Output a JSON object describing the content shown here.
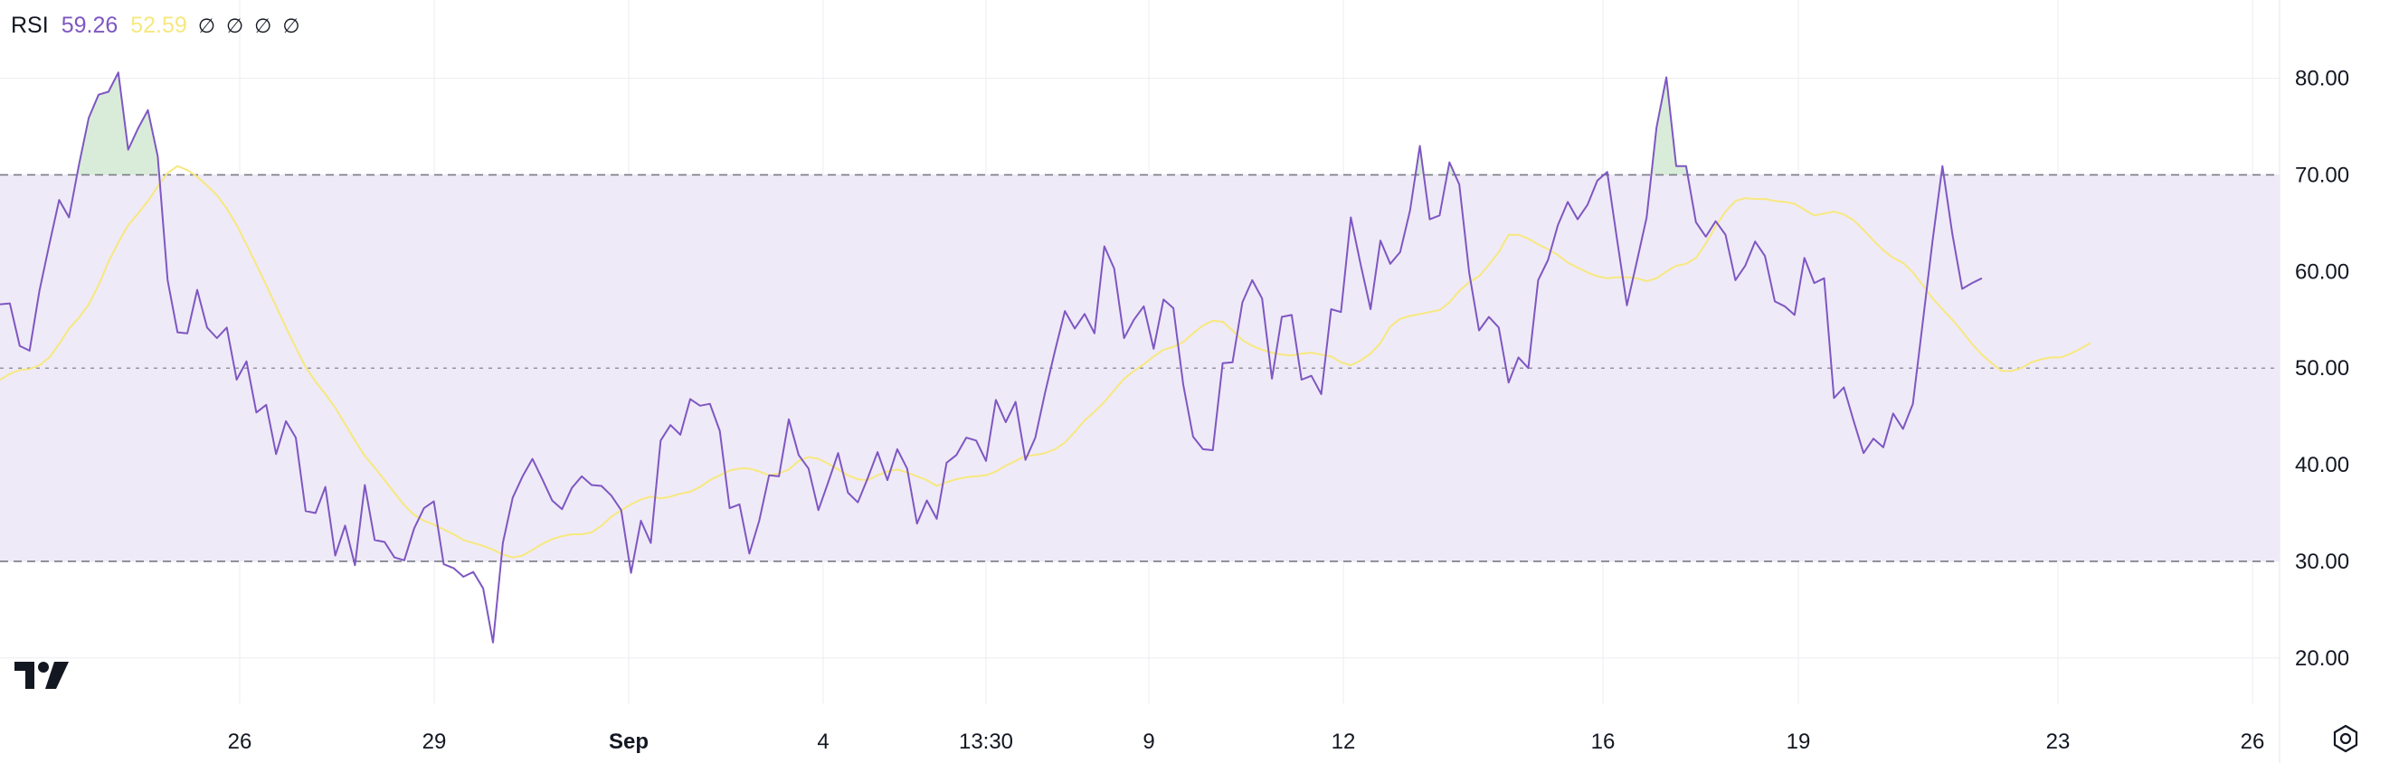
{
  "legend": {
    "indicator": "RSI",
    "value_rsi": "59.26",
    "value_ma": "52.59",
    "na_symbols": [
      "∅",
      "∅",
      "∅",
      "∅"
    ]
  },
  "colors": {
    "rsi": "#7e57c2",
    "ma": "#f7e87f",
    "band_fill": "#efeaf7",
    "overbought_fill": "#d9ecd9",
    "grid": "#eeeef2",
    "band_line": "#787b86"
  },
  "icons": {
    "logo": "tradingview-logo-icon",
    "settings": "settings-gear-icon"
  },
  "chart_data": {
    "type": "line",
    "title": "",
    "xlabel": "",
    "ylabel": "",
    "x_ticks": [
      {
        "label": "26",
        "bold": false
      },
      {
        "label": "29",
        "bold": false
      },
      {
        "label": "Sep",
        "bold": true
      },
      {
        "label": "4",
        "bold": false
      },
      {
        "label": "13:30",
        "bold": false
      },
      {
        "label": "9",
        "bold": false
      },
      {
        "label": "12",
        "bold": false
      },
      {
        "label": "16",
        "bold": false
      },
      {
        "label": "19",
        "bold": false
      },
      {
        "label": "23",
        "bold": false
      },
      {
        "label": "26",
        "bold": false
      }
    ],
    "y_ticks": [
      "20.00",
      "30.00",
      "40.00",
      "50.00",
      "60.00",
      "70.00",
      "80.00"
    ],
    "ylim": [
      15.3,
      88.1
    ],
    "bands": {
      "upper": 70,
      "middle": 50,
      "lower": 30
    },
    "grid": true,
    "series": [
      {
        "name": "RSI",
        "values": [
          56.6,
          56.7,
          52.3,
          51.8,
          58.0,
          62.8,
          67.4,
          65.6,
          71.0,
          75.9,
          78.3,
          78.6,
          80.6,
          72.6,
          74.8,
          76.7,
          71.9,
          59.1,
          53.7,
          53.6,
          58.1,
          54.2,
          53.1,
          54.2,
          48.8,
          50.7,
          45.4,
          46.2,
          41.1,
          44.5,
          42.8,
          35.2,
          35.0,
          37.7,
          30.6,
          33.7,
          29.6,
          37.9,
          32.2,
          32.0,
          30.4,
          30.1,
          33.4,
          35.5,
          36.2,
          29.7,
          29.3,
          28.4,
          28.9,
          27.2,
          21.6,
          31.9,
          36.6,
          38.8,
          40.6,
          38.5,
          36.3,
          35.4,
          37.6,
          38.8,
          37.9,
          37.8,
          36.8,
          35.3,
          28.8,
          34.2,
          31.9,
          42.5,
          44.1,
          43.1,
          46.8,
          46.1,
          46.3,
          43.5,
          35.5,
          35.9,
          30.8,
          34.2,
          38.9,
          38.8,
          44.7,
          41.0,
          39.6,
          35.3,
          38.2,
          41.2,
          37.1,
          36.1,
          38.6,
          41.3,
          38.4,
          41.6,
          39.6,
          33.9,
          36.3,
          34.4,
          40.2,
          41.0,
          42.8,
          42.5,
          40.4,
          46.7,
          44.4,
          46.5,
          40.5,
          42.8,
          47.5,
          51.8,
          55.9,
          54.1,
          55.6,
          53.6,
          62.6,
          60.3,
          53.1,
          55.0,
          56.4,
          52.0,
          57.1,
          56.2,
          48.3,
          42.9,
          41.6,
          41.5,
          50.5,
          50.6,
          56.8,
          59.1,
          57.2,
          48.9,
          55.3,
          55.5,
          48.8,
          49.2,
          47.3,
          56.1,
          55.8,
          65.6,
          60.7,
          56.1,
          63.2,
          60.8,
          62.0,
          66.3,
          73.0,
          65.4,
          65.8,
          71.3,
          69.0,
          59.9,
          53.9,
          55.3,
          54.2,
          48.5,
          51.1,
          50.0,
          59.1,
          61.2,
          64.8,
          67.2,
          65.4,
          66.9,
          69.4,
          70.3,
          63.3,
          56.5,
          61.0,
          65.6,
          74.9,
          80.1,
          70.9,
          70.9,
          65.1,
          63.6,
          65.2,
          63.8,
          59.1,
          60.6,
          63.1,
          61.6,
          56.9,
          56.4,
          55.5,
          61.4,
          58.8,
          59.3,
          46.9,
          48.0,
          44.5,
          41.2,
          42.7,
          41.8,
          45.3,
          43.7,
          46.3,
          54.7,
          63.2,
          70.9,
          63.9,
          58.2,
          58.8,
          59.3
        ],
        "color": "#7e57c2"
      },
      {
        "name": "MA",
        "values": [
          48.8,
          49.4,
          49.8,
          49.9,
          50.3,
          51.1,
          52.5,
          54.1,
          55.2,
          56.6,
          58.6,
          61.0,
          63.0,
          64.8,
          66.0,
          67.3,
          68.8,
          70.2,
          70.9,
          70.5,
          69.8,
          68.9,
          67.9,
          66.5,
          64.8,
          62.8,
          60.7,
          58.6,
          56.4,
          54.2,
          52.1,
          50.1,
          48.6,
          47.3,
          45.9,
          44.2,
          42.5,
          40.9,
          39.7,
          38.4,
          37.1,
          35.8,
          34.8,
          34.2,
          33.8,
          33.3,
          32.8,
          32.2,
          31.9,
          31.6,
          31.2,
          30.7,
          30.4,
          30.6,
          31.2,
          31.8,
          32.3,
          32.6,
          32.8,
          32.8,
          33.0,
          33.7,
          34.6,
          35.3,
          35.9,
          36.4,
          36.7,
          36.5,
          36.7,
          37.0,
          37.2,
          37.7,
          38.4,
          38.9,
          39.4,
          39.6,
          39.6,
          39.3,
          38.9,
          39.1,
          39.5,
          40.4,
          40.8,
          40.6,
          40.1,
          39.5,
          38.9,
          38.5,
          38.4,
          38.9,
          39.3,
          39.5,
          39.2,
          38.8,
          38.4,
          37.8,
          38.2,
          38.5,
          38.7,
          38.8,
          38.9,
          39.3,
          39.9,
          40.4,
          40.9,
          41.0,
          41.2,
          41.6,
          42.3,
          43.4,
          44.6,
          45.5,
          46.5,
          47.7,
          48.9,
          49.7,
          50.4,
          51.2,
          51.9,
          52.2,
          52.7,
          53.6,
          54.4,
          54.9,
          54.8,
          53.9,
          52.9,
          52.3,
          51.9,
          51.6,
          51.4,
          51.3,
          51.5,
          51.6,
          51.4,
          51.2,
          50.6,
          50.3,
          50.8,
          51.5,
          52.6,
          54.3,
          55.1,
          55.4,
          55.6,
          55.8,
          56.0,
          56.8,
          58.0,
          58.9,
          59.5,
          60.7,
          62.0,
          63.8,
          63.8,
          63.4,
          62.8,
          62.3,
          61.7,
          60.9,
          60.4,
          59.9,
          59.5,
          59.3,
          59.4,
          59.4,
          59.3,
          59.0,
          59.3,
          60.0,
          60.6,
          60.8,
          61.4,
          62.9,
          64.7,
          66.2,
          67.3,
          67.6,
          67.5,
          67.5,
          67.3,
          67.2,
          67.0,
          66.4,
          65.8,
          66.0,
          66.2,
          65.9,
          65.3,
          64.3,
          63.2,
          62.2,
          61.4,
          60.9,
          59.9,
          58.6,
          57.2,
          56.1,
          55.0,
          53.8,
          52.5,
          51.4,
          50.5,
          49.7,
          49.7,
          50.0,
          50.6,
          50.9,
          51.1,
          51.1,
          51.5,
          52.0,
          52.6
        ],
        "color": "#f7e87f"
      }
    ]
  }
}
